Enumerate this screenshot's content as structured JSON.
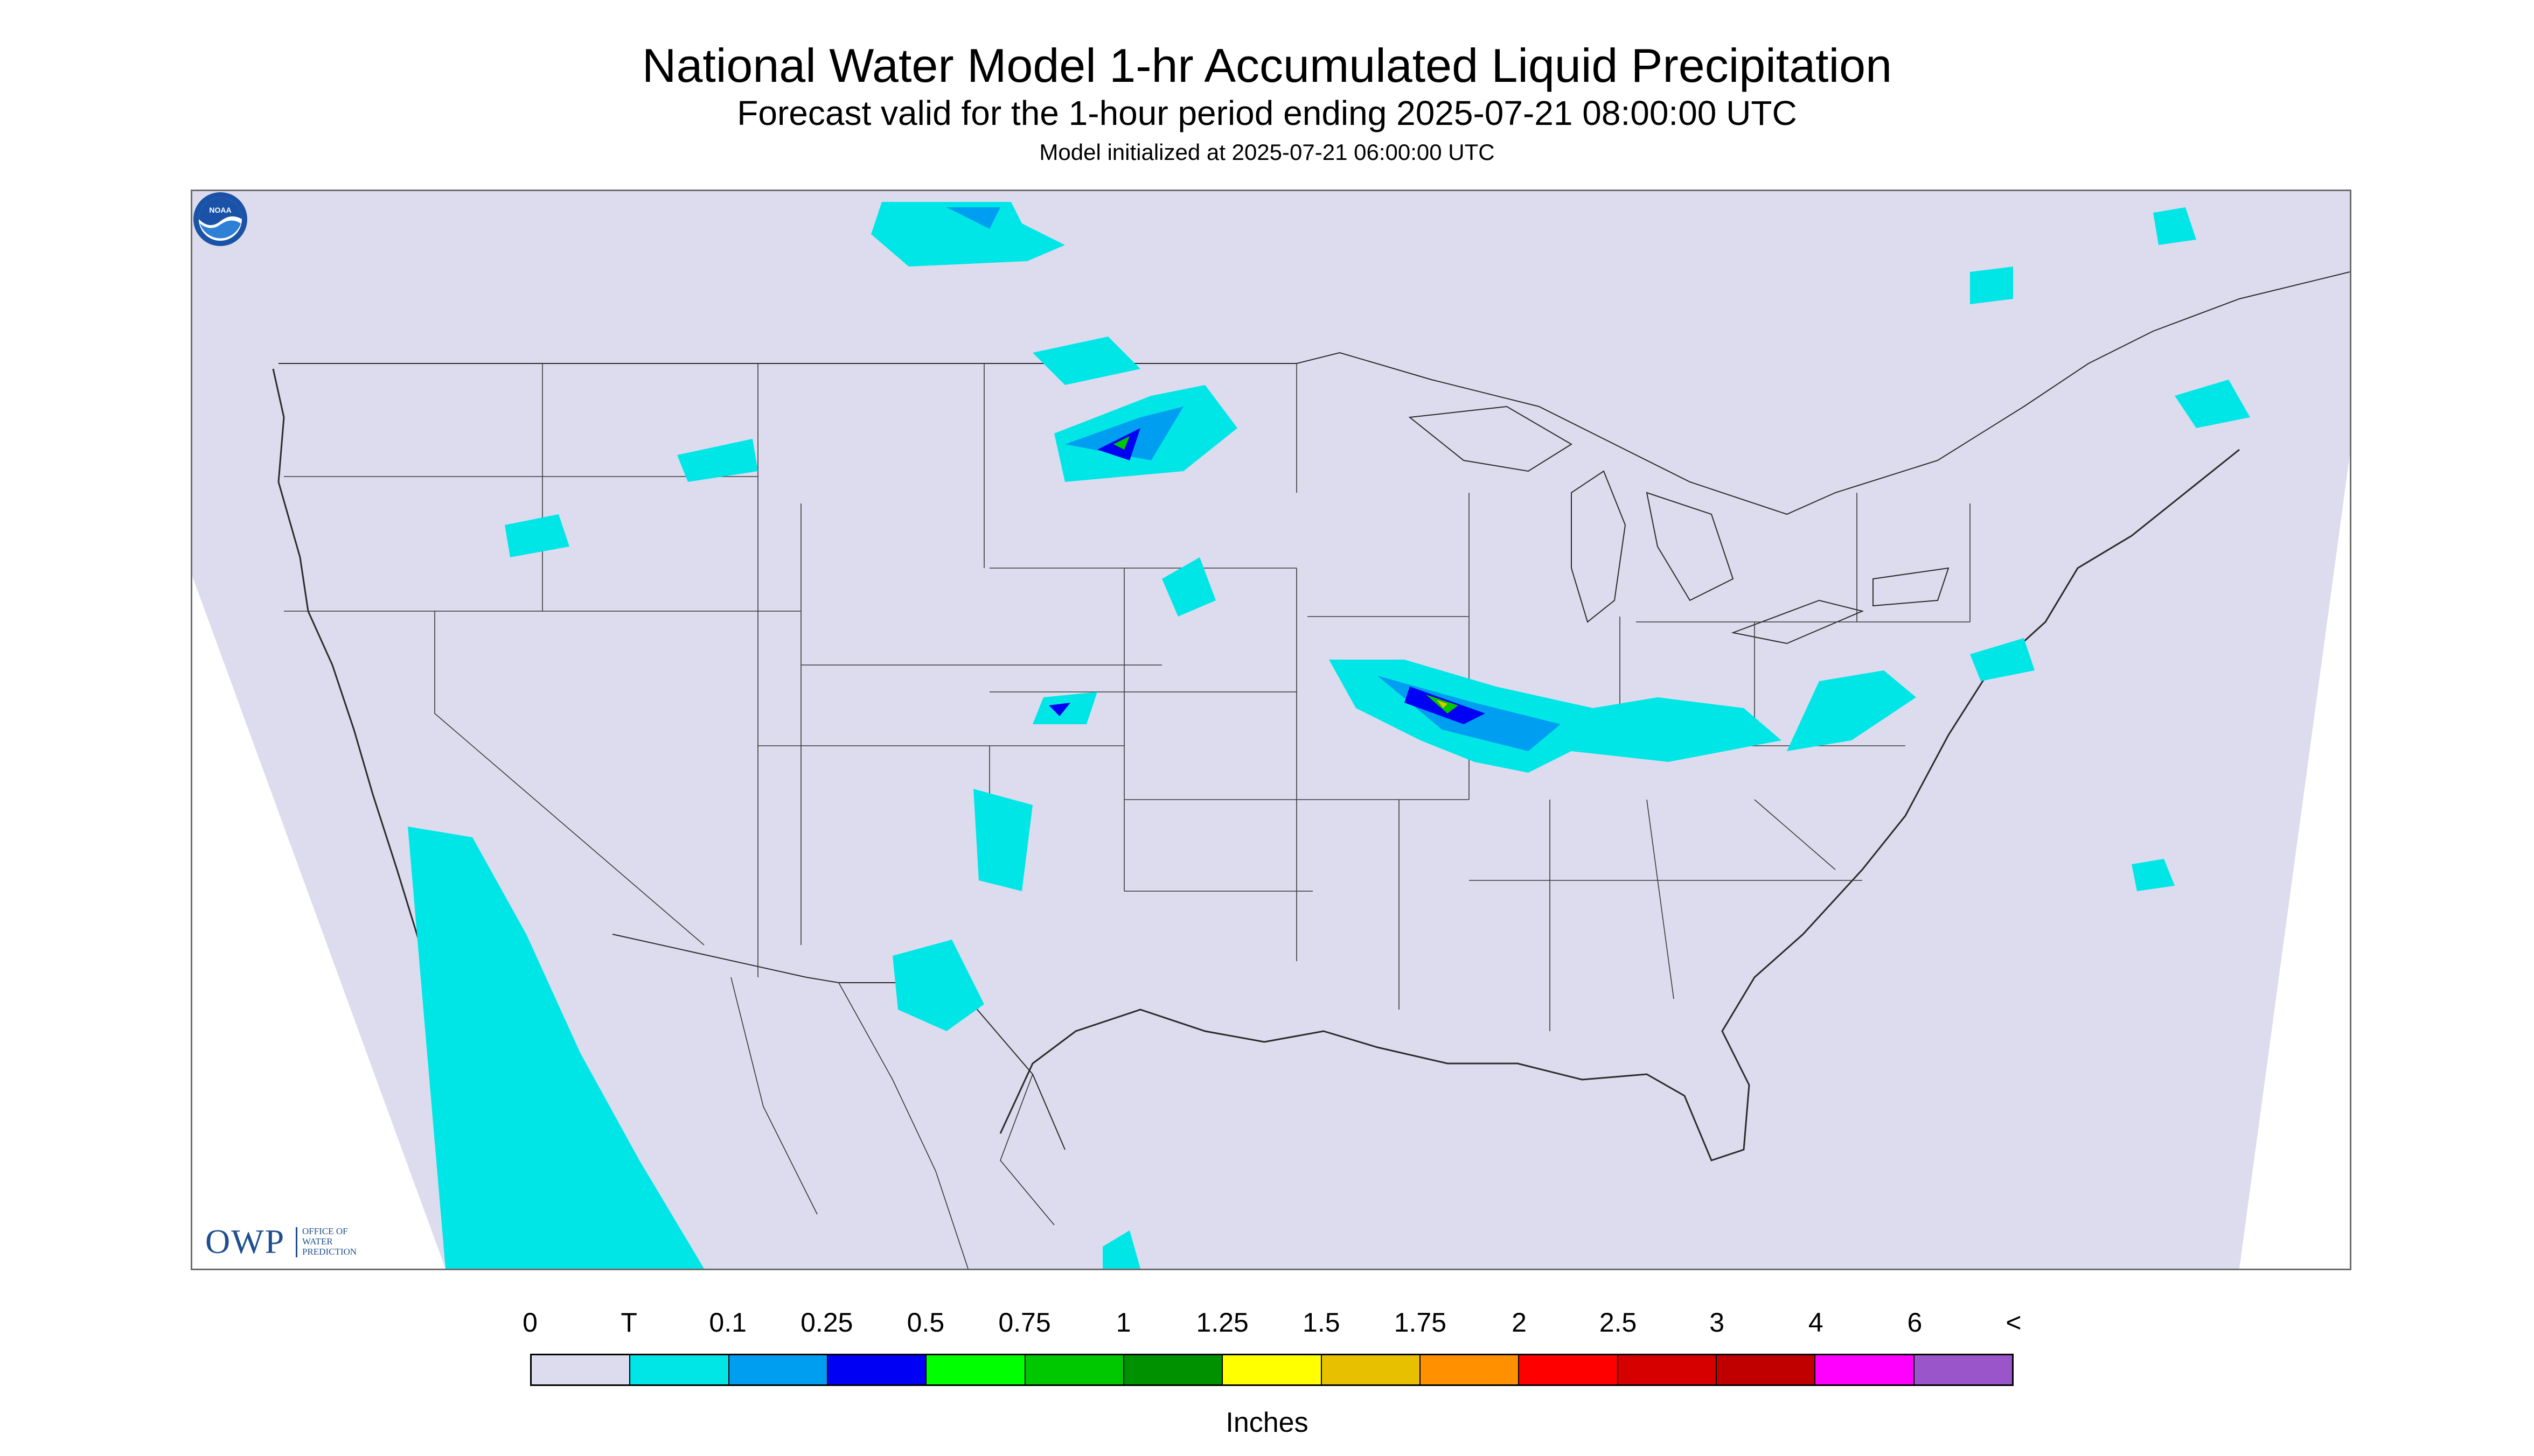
{
  "header": {
    "title": "National Water Model 1-hr Accumulated Liquid Precipitation",
    "subtitle": "Forecast valid for the 1-hour period ending 2025-07-21 08:00:00 UTC",
    "init": "Model initialized at 2025-07-21 06:00:00 UTC"
  },
  "map": {
    "region": "contiguous-united-states",
    "background_color": "#dcdcee",
    "boundary_color": "#2b2b2b",
    "outside_color": "#ffffff"
  },
  "logos": {
    "owp_mark": "OWP",
    "owp_text_lines": [
      "OFFICE OF",
      "WATER",
      "PREDICTION"
    ],
    "noaa_text": "NOAA"
  },
  "legend": {
    "labels": [
      "0",
      "T",
      "0.1",
      "0.25",
      "0.5",
      "0.75",
      "1",
      "1.25",
      "1.5",
      "1.75",
      "2",
      "2.5",
      "3",
      "4",
      "6",
      "<"
    ],
    "colors": [
      "#dcdcee",
      "#00e6e6",
      "#009ef0",
      "#0000f5",
      "#00ff00",
      "#00c800",
      "#009100",
      "#ffff00",
      "#e7c000",
      "#ff9000",
      "#ff0000",
      "#d70000",
      "#c00000",
      "#ff00ff",
      "#9955c9"
    ],
    "units": "Inches"
  }
}
